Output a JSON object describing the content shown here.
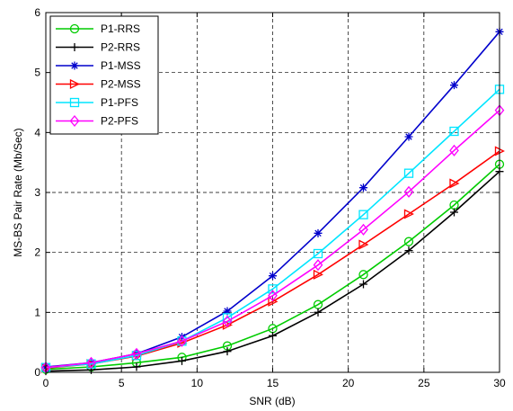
{
  "chart_data": {
    "type": "line",
    "xlabel": "SNR (dB)",
    "ylabel": "MS-BS Pair Rate (Mb/Sec)",
    "xlim": [
      0,
      30
    ],
    "ylim": [
      0,
      6
    ],
    "xticks": [
      0,
      5,
      10,
      15,
      20,
      25,
      30
    ],
    "yticks": [
      0,
      1,
      2,
      3,
      4,
      5,
      6
    ],
    "grid": true,
    "grid_style": "dashed",
    "legend_position": "top-left",
    "x": [
      0,
      3,
      6,
      9,
      12,
      15,
      18,
      21,
      24,
      27,
      30
    ],
    "series": [
      {
        "name": "P1-RRS",
        "color": "#00cc00",
        "marker": "circle",
        "values": [
          0.05,
          0.09,
          0.16,
          0.25,
          0.44,
          0.73,
          1.13,
          1.63,
          2.18,
          2.79,
          3.47
        ]
      },
      {
        "name": "P2-RRS",
        "color": "#000000",
        "marker": "plus",
        "values": [
          0.02,
          0.04,
          0.09,
          0.19,
          0.35,
          0.61,
          1.0,
          1.47,
          2.03,
          2.67,
          3.35
        ]
      },
      {
        "name": "P1-MSS",
        "color": "#0000cc",
        "marker": "asterisk",
        "values": [
          0.09,
          0.16,
          0.31,
          0.59,
          1.02,
          1.61,
          2.32,
          3.08,
          3.93,
          4.79,
          5.68
        ]
      },
      {
        "name": "P2-MSS",
        "color": "#ff0000",
        "marker": "triangle-right",
        "values": [
          0.07,
          0.14,
          0.27,
          0.49,
          0.79,
          1.18,
          1.63,
          2.13,
          2.64,
          3.15,
          3.69
        ]
      },
      {
        "name": "P1-PFS",
        "color": "#00e5ff",
        "marker": "square",
        "values": [
          0.08,
          0.14,
          0.28,
          0.52,
          0.91,
          1.39,
          1.98,
          2.63,
          3.32,
          4.02,
          4.72
        ]
      },
      {
        "name": "P2-PFS",
        "color": "#ff00ff",
        "marker": "diamond",
        "values": [
          0.08,
          0.16,
          0.31,
          0.52,
          0.85,
          1.28,
          1.79,
          2.38,
          3.01,
          3.7,
          4.37
        ]
      }
    ]
  }
}
